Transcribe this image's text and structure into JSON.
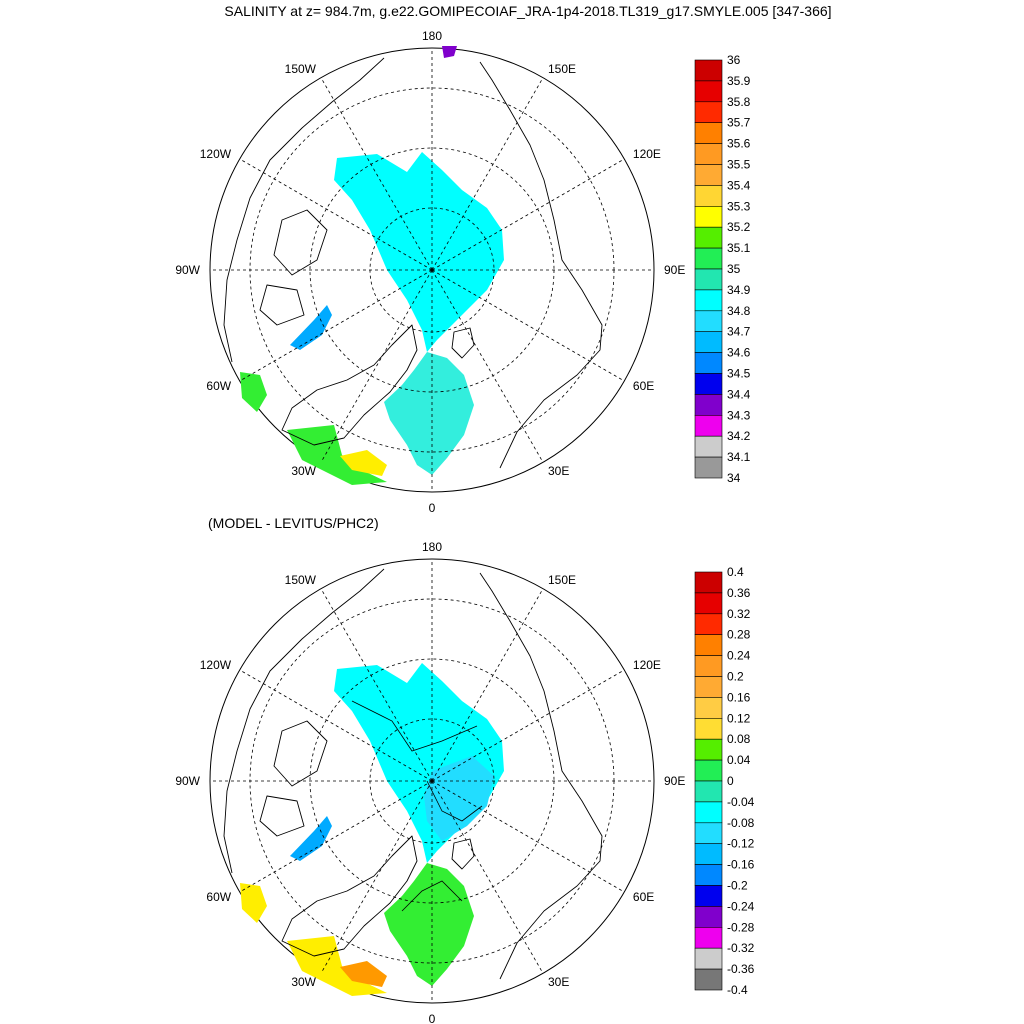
{
  "figure_title": "SALINITY at z= 984.7m, g.e22.GOMIPECOIAF_JRA-1p4-2018.TL319_g17.SMYLE.005 [347-366]",
  "panel2_title": "(MODEL - LEVITUS/PHC2)",
  "lon_labels": [
    "180",
    "150E",
    "120E",
    "90E",
    "60E",
    "30E",
    "0",
    "30W",
    "60W",
    "90W",
    "120W",
    "150W"
  ],
  "colorbars": [
    {
      "labels": [
        "36",
        "35.9",
        "35.8",
        "35.7",
        "35.6",
        "35.5",
        "35.4",
        "35.3",
        "35.2",
        "35.1",
        "35",
        "34.9",
        "34.8",
        "34.7",
        "34.6",
        "34.5",
        "34.4",
        "34.3",
        "34.2",
        "34.1",
        "34"
      ],
      "colors": [
        "#cc0000",
        "#e60000",
        "#ff2a00",
        "#ff8000",
        "#ff9a22",
        "#ffaa33",
        "#ffd633",
        "#ffff00",
        "#55ee00",
        "#22ee55",
        "#22e6b0",
        "#00ffff",
        "#22ddff",
        "#00bbff",
        "#0088ff",
        "#0000ee",
        "#8000cc",
        "#ee00ee",
        "#cccccc",
        "#999999"
      ]
    },
    {
      "labels": [
        "0.4",
        "0.36",
        "0.32",
        "0.28",
        "0.24",
        "0.2",
        "0.16",
        "0.12",
        "0.08",
        "0.04",
        "0",
        "-0.04",
        "-0.08",
        "-0.12",
        "-0.16",
        "-0.2",
        "-0.24",
        "-0.28",
        "-0.32",
        "-0.36",
        "-0.4"
      ],
      "colors": [
        "#cc0000",
        "#e60000",
        "#ff2a00",
        "#ff8000",
        "#ff9a22",
        "#ffaa33",
        "#ffcc44",
        "#ffdd33",
        "#55ee00",
        "#22ee55",
        "#22e6b0",
        "#00ffff",
        "#22ddff",
        "#00bbff",
        "#0088ff",
        "#0000ee",
        "#8000cc",
        "#ee00ee",
        "#cccccc",
        "#777777"
      ]
    }
  ],
  "colors": {
    "cyan": "#00ffff",
    "sky": "#22ddff",
    "blue": "#00aaff",
    "turquoise": "#33eedd",
    "green": "#33ee33",
    "yellow": "#ffee00",
    "orange": "#ff9900",
    "purple": "#8000cc"
  }
}
